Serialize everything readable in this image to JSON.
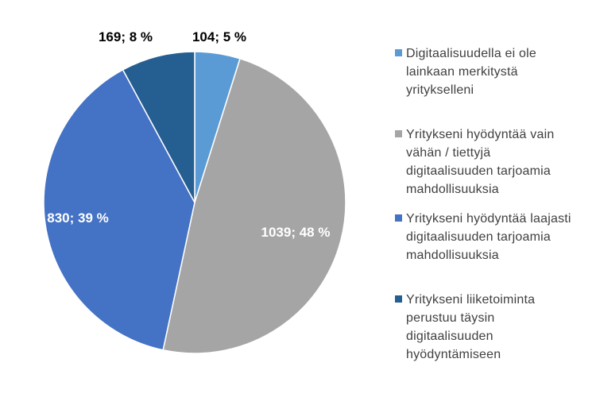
{
  "chart_data": {
    "type": "pie",
    "start_angle_deg": 0,
    "direction": "clockwise",
    "slices": [
      {
        "label": "Digitaalisuudella ei ole lainkaan merkitystä yritykselleni",
        "value": 104,
        "percent": 5,
        "data_label": "104; 5 %",
        "color": "#5b9bd5",
        "label_color": "#000000"
      },
      {
        "label": "Yritykseni hyödyntää vain vähän / tiettyjä digitaalisuuden tarjoamia mahdollisuuksia",
        "value": 1039,
        "percent": 48,
        "data_label": "1039; 48 %",
        "color": "#a5a5a5",
        "label_color": "#ffffff"
      },
      {
        "label": "Yritykseni hyödyntää laajasti digitaalisuuden tarjoamia mahdollisuuksia",
        "value": 830,
        "percent": 39,
        "data_label": "830; 39 %",
        "color": "#4472c4",
        "label_color": "#ffffff"
      },
      {
        "label": "Yritykseni liiketoiminta perustuu täysin digitaalisuuden hyödyntämiseen",
        "value": 169,
        "percent": 8,
        "data_label": "169; 8 %",
        "color": "#255e91",
        "label_color": "#000000"
      }
    ],
    "legend_position": "right"
  },
  "legend": {
    "items": [
      {
        "lines": [
          "Digitaalisuudella ei ole",
          "lainkaan merkitystä",
          "yritykselleni"
        ]
      },
      {
        "lines": [
          "Yritykseni hyödyntää vain",
          "vähän / tiettyjä",
          "digitaalisuuden tarjoamia",
          "mahdollisuuksia"
        ]
      },
      {
        "lines": [
          "Yritykseni hyödyntää laajasti",
          "digitaalisuuden tarjoamia",
          "mahdollisuuksia"
        ]
      },
      {
        "lines": [
          "Yritykseni liiketoiminta",
          "perustuu täysin",
          "digitaalisuuden",
          "hyödyntämiseen"
        ]
      }
    ]
  }
}
